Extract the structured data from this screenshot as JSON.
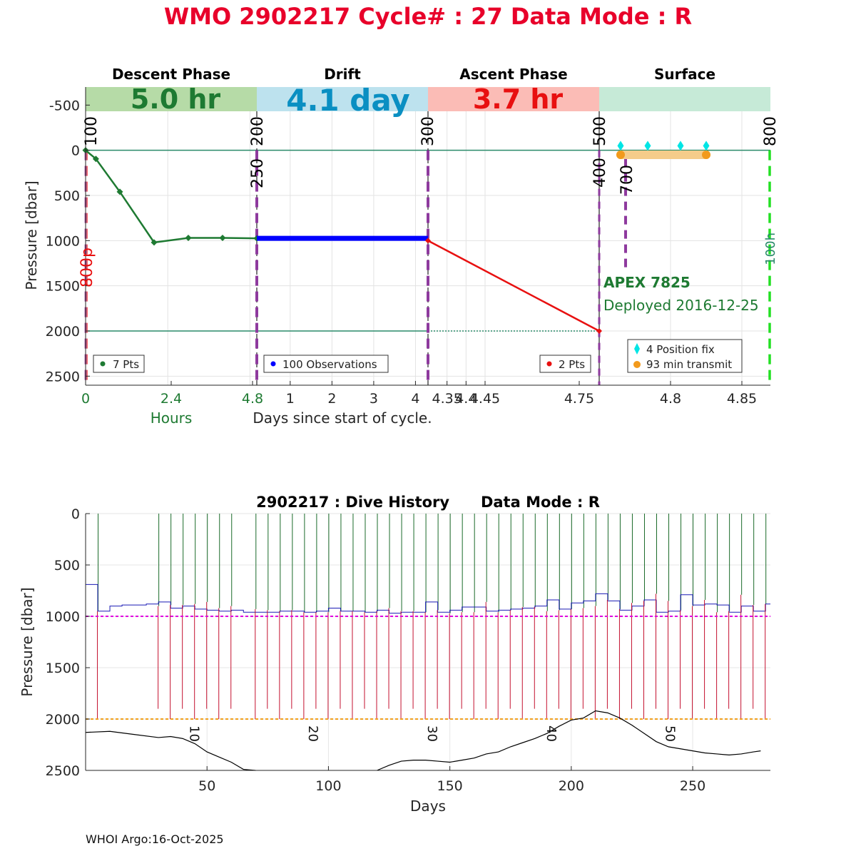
{
  "page_title": "WMO 2902217   Cycle# : 27   Data Mode : R",
  "colors": {
    "title": "#e8002a",
    "descent": "#1e7a32",
    "drift": "#0000ff",
    "ascent": "#e81010",
    "descent_band": "#b6dba7",
    "drift_band": "#bde2ee",
    "ascent_band": "#fbbcb6",
    "surface_band": "#c6ead7",
    "drift_band_text": "#0a8fc2",
    "marker_line": "#8e3a9e",
    "position_fix": "#00e5e5",
    "transmit": "#f29a1c",
    "transmit_bar": "#f5cc8a",
    "lime": "#22e022",
    "ref_line": "#2a8a6a",
    "history_up": "#1b6b2a",
    "history_down": "#c4112f",
    "history_park": "#1a1ab5",
    "history_mean_park": "#e000e0",
    "history_mean_profile": "#f0a020",
    "bathymetry": "#000000"
  },
  "chart_data": [
    {
      "type": "line",
      "id": "cycle-profile",
      "ylabel": "Pressure [dbar]",
      "ylim": [
        2600,
        -700
      ],
      "yticks": [
        -500,
        0,
        500,
        1000,
        1500,
        2000,
        2500
      ],
      "grid": true,
      "phases": [
        {
          "name": "Descent Phase",
          "duration": "5.0 hr"
        },
        {
          "name": "Drift",
          "duration": "4.1 day"
        },
        {
          "name": "Ascent Phase",
          "duration": "3.7 hr"
        },
        {
          "name": "Surface",
          "duration": ""
        }
      ],
      "descent": {
        "xlabel": "Hours",
        "xlim": [
          0,
          5.0
        ],
        "xticks": [
          "0",
          "2.4",
          "4.8"
        ],
        "legend": "7 Pts",
        "x": [
          0,
          0.3,
          1.0,
          2.0,
          3.0,
          4.0,
          5.0
        ],
        "y": [
          0,
          95,
          460,
          1020,
          970,
          970,
          975
        ]
      },
      "drift": {
        "xlabel": "Days since start of cycle.",
        "xlim": [
          0.2,
          4.3
        ],
        "xticks": [
          "1",
          "2",
          "3",
          "4"
        ],
        "legend": "100 Observations",
        "x": [
          0.2,
          4.3
        ],
        "y": [
          975,
          975
        ]
      },
      "ascent": {
        "xlim": [
          4.3,
          4.75
        ],
        "xticks": [
          "4.35",
          "4.4",
          "4.45",
          "4.75"
        ],
        "legend": "2 Pts",
        "x": [
          4.3,
          4.75
        ],
        "y": [
          1000,
          2000
        ]
      },
      "surface": {
        "xlim": [
          4.75,
          4.87
        ],
        "xticks": [
          "4.8",
          "4.85"
        ],
        "legend_fix": "4 Position fix",
        "legend_transmit": "93 min transmit",
        "transmit_x": [
          4.765,
          4.825
        ],
        "transmit_y": [
          50,
          50
        ],
        "fix_x": [
          4.765,
          4.784,
          4.807,
          4.825
        ],
        "fix_y": [
          -50,
          -50,
          -50,
          -50
        ]
      },
      "marker_labels": [
        "100",
        "200",
        "250",
        "300",
        "400",
        "500",
        "700",
        "800",
        "800p",
        "100h"
      ],
      "float_label": "APEX 7825",
      "deploy_label": "Deployed 2016-12-25"
    },
    {
      "type": "line",
      "id": "dive-history",
      "title": "2902217 : Dive History      Data Mode : R",
      "xlabel": "Days",
      "ylabel": "Pressure [dbar]",
      "xlim": [
        0,
        282
      ],
      "ylim": [
        2500,
        0
      ],
      "xticks": [
        50,
        100,
        150,
        200,
        250
      ],
      "yticks": [
        0,
        500,
        1000,
        1500,
        2000,
        2500
      ],
      "grid": true,
      "mean_park_pressure": 1000,
      "mean_profile_pressure": 2000,
      "cycle_labels": [
        "10",
        "20",
        "30",
        "40",
        "50"
      ],
      "cycle_label_x": [
        43,
        92,
        141,
        190,
        239
      ],
      "profile_days": [
        5,
        30,
        35,
        40,
        45,
        50,
        55,
        60,
        70,
        75,
        80,
        85,
        90,
        95,
        100,
        105,
        110,
        115,
        120,
        125,
        130,
        135,
        140,
        145,
        150,
        155,
        160,
        165,
        170,
        175,
        180,
        185,
        190,
        195,
        200,
        205,
        210,
        215,
        220,
        225,
        230,
        235,
        240,
        245,
        250,
        255,
        260,
        265,
        270,
        275,
        280
      ],
      "profile_bottom": [
        2000,
        1900,
        2000,
        1900,
        2000,
        1900,
        2000,
        1900,
        2000,
        1900,
        2000,
        1900,
        2000,
        1900,
        2000,
        1900,
        2000,
        1900,
        2000,
        1900,
        2000,
        1900,
        2000,
        1900,
        2000,
        1900,
        2000,
        1900,
        2000,
        1900,
        2000,
        1900,
        2000,
        1900,
        2000,
        1900,
        2000,
        1900,
        2000,
        1900,
        2000,
        1900,
        2000,
        1900,
        2000,
        1900,
        2000,
        1900,
        2000,
        1900,
        2000
      ],
      "park_days": [
        0,
        5,
        10,
        15,
        20,
        25,
        30,
        35,
        40,
        45,
        50,
        55,
        60,
        65,
        70,
        75,
        80,
        85,
        90,
        95,
        100,
        105,
        110,
        115,
        120,
        125,
        130,
        135,
        140,
        145,
        150,
        155,
        160,
        165,
        170,
        175,
        180,
        185,
        190,
        195,
        200,
        205,
        210,
        215,
        220,
        225,
        230,
        235,
        240,
        245,
        250,
        255,
        260,
        265,
        270,
        275,
        280
      ],
      "park_pressure": [
        690,
        950,
        900,
        890,
        890,
        880,
        860,
        920,
        900,
        930,
        940,
        950,
        940,
        960,
        960,
        960,
        950,
        950,
        960,
        950,
        920,
        950,
        950,
        960,
        940,
        970,
        960,
        960,
        860,
        960,
        940,
        910,
        910,
        950,
        940,
        930,
        920,
        900,
        840,
        930,
        870,
        850,
        780,
        850,
        940,
        900,
        840,
        960,
        950,
        790,
        890,
        880,
        890,
        960,
        900,
        950,
        880
      ],
      "bathymetry_x": [
        0,
        10,
        20,
        30,
        35,
        40,
        45,
        50,
        55,
        60,
        65,
        70,
        120,
        125,
        130,
        135,
        140,
        145,
        150,
        155,
        160,
        165,
        170,
        175,
        180,
        185,
        190,
        195,
        200,
        205,
        210,
        215,
        220,
        225,
        230,
        235,
        240,
        245,
        250,
        255,
        260,
        265,
        270,
        275,
        278
      ],
      "bathymetry_y": [
        2130,
        2120,
        2150,
        2180,
        2170,
        2190,
        2240,
        2320,
        2370,
        2420,
        2490,
        2500,
        2500,
        2450,
        2410,
        2400,
        2400,
        2410,
        2420,
        2400,
        2380,
        2340,
        2320,
        2270,
        2230,
        2190,
        2140,
        2070,
        2010,
        1990,
        1920,
        1940,
        1990,
        2060,
        2140,
        2220,
        2270,
        2290,
        2310,
        2330,
        2340,
        2350,
        2340,
        2320,
        2310
      ]
    }
  ],
  "footer": "WHOI Argo:16-Oct-2025"
}
